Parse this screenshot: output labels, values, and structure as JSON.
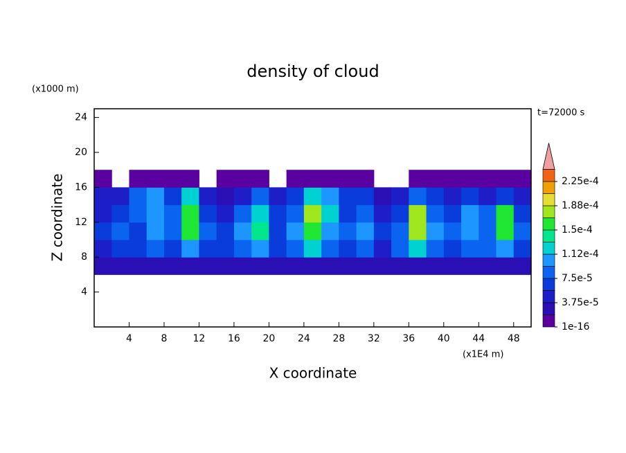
{
  "chart_data": {
    "type": "heatmap",
    "title": "density of cloud",
    "y_unit": "(x1000 m)",
    "x_unit": "(x1E4 m)",
    "y_label": "Z coordinate",
    "x_label": "X coordinate",
    "time_label": "t=72000 s",
    "xlim": [
      0,
      50
    ],
    "ylim": [
      0,
      25
    ],
    "xticks": [
      4,
      8,
      12,
      16,
      20,
      24,
      28,
      32,
      36,
      40,
      44,
      48
    ],
    "yticks": [
      4,
      8,
      12,
      16,
      20,
      24
    ],
    "x_bins": [
      0,
      2,
      4,
      6,
      8,
      10,
      12,
      14,
      16,
      18,
      20,
      22,
      24,
      26,
      28,
      30,
      32,
      34,
      36,
      38,
      40,
      42,
      44,
      46,
      48,
      50
    ],
    "z_bins": [
      6,
      8,
      10,
      12,
      14,
      16,
      18
    ],
    "values": [
      [
        2e-05,
        3e-05,
        2e-05,
        3e-05,
        2e-05,
        3e-05,
        2e-05,
        2e-05,
        3e-05,
        2e-05,
        2e-05,
        3e-05,
        2e-05,
        3e-05,
        2e-05,
        2e-05,
        3e-05,
        2e-05,
        3e-05,
        2e-05,
        2e-05,
        3e-05,
        2e-05,
        3e-05,
        2e-05
      ],
      [
        5e-05,
        7e-05,
        6e-05,
        8e-05,
        6e-05,
        0.0001,
        7e-05,
        6e-05,
        9e-05,
        0.0001,
        7e-05,
        8e-05,
        0.00012,
        8e-05,
        6e-05,
        9e-05,
        5e-05,
        8e-05,
        0.00012,
        8e-05,
        6e-05,
        9e-05,
        8e-05,
        0.00011,
        7e-05
      ],
      [
        6e-05,
        9e-05,
        7e-05,
        0.0001,
        9e-05,
        0.00015,
        9e-05,
        7e-05,
        0.00011,
        0.00014,
        7e-05,
        0.0001,
        0.00016,
        0.00011,
        8e-05,
        0.00011,
        6e-05,
        9e-05,
        0.00017,
        0.0001,
        8e-05,
        0.00011,
        9e-05,
        0.00016,
        8e-05
      ],
      [
        5e-05,
        7e-05,
        8e-05,
        0.00011,
        9e-05,
        0.00016,
        6e-05,
        5e-05,
        8e-05,
        0.00012,
        6e-05,
        8e-05,
        0.00017,
        0.00012,
        7e-05,
        9e-05,
        5e-05,
        7e-05,
        0.00018,
        9e-05,
        7e-05,
        0.0001,
        8e-05,
        0.00015,
        7e-05
      ],
      [
        4e-05,
        5e-05,
        9e-05,
        0.0001,
        7e-05,
        0.00012,
        4e-05,
        3e-05,
        5e-05,
        8e-05,
        5e-05,
        7e-05,
        0.00013,
        0.0001,
        6e-05,
        6e-05,
        3e-05,
        5e-05,
        8e-05,
        7e-05,
        5e-05,
        6e-05,
        5e-05,
        6e-05,
        4e-05
      ],
      [
        3e-06,
        null,
        2e-06,
        3e-06,
        2e-06,
        3e-06,
        null,
        3e-06,
        2e-06,
        2e-06,
        null,
        3e-06,
        2e-06,
        3e-06,
        3e-06,
        2e-06,
        null,
        null,
        2e-06,
        3e-06,
        2e-06,
        3e-06,
        2e-06,
        3e-06,
        2e-06
      ]
    ],
    "levels": [
      1e-16,
      1.875e-05,
      3.75e-05,
      5.625e-05,
      7.5e-05,
      9.375e-05,
      0.0001125,
      0.00013125,
      0.00015,
      0.00016875,
      0.0001875,
      0.00020625,
      0.000225,
      0.00024375
    ],
    "level_labels": [
      {
        "value": 1e-16,
        "label": "1e-16"
      },
      {
        "value": 3.75e-05,
        "label": "3.75e-5"
      },
      {
        "value": 7.5e-05,
        "label": "7.5e-5"
      },
      {
        "value": 0.0001125,
        "label": "1.12e-4"
      },
      {
        "value": 0.00015,
        "label": "1.5e-4"
      },
      {
        "value": 0.0001875,
        "label": "1.88e-4"
      },
      {
        "value": 0.000225,
        "label": "2.25e-4"
      }
    ],
    "colors": [
      "#5a00a0",
      "#2a0fb4",
      "#1e1ec8",
      "#0a3cdc",
      "#0a64f0",
      "#1e96ff",
      "#00d2d2",
      "#00e68c",
      "#1ee632",
      "#a0e61e",
      "#e6dc32",
      "#f0a000",
      "#f06414"
    ],
    "over_color": "#f0a0a0"
  }
}
